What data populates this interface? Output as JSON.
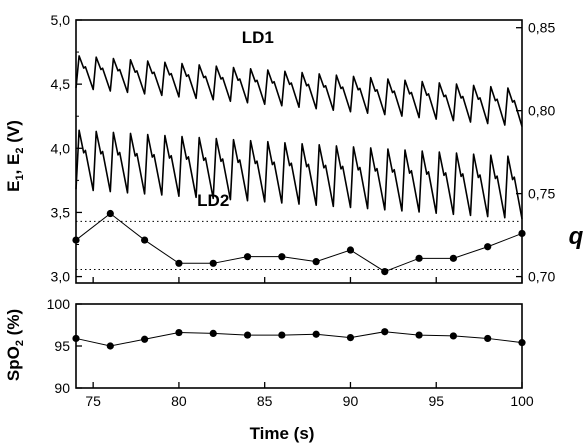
{
  "chart_data": [
    {
      "type": "line",
      "panel": "top",
      "ylabel_left": "E1, E2 (V)",
      "ylabel_right": "q",
      "x_range": [
        74,
        100
      ],
      "y_left_range": [
        2.95,
        5.0
      ],
      "y_left_ticks": [
        "3,0",
        "3,5",
        "4,0",
        "4,5",
        "5,0"
      ],
      "y_left_tick_values": [
        3.0,
        3.5,
        4.0,
        4.5,
        5.0
      ],
      "y_right_ticks": [
        "0,70",
        "0,75",
        "0,80",
        "0,85"
      ],
      "y_right_tick_values": [
        0.7,
        0.75,
        0.8,
        0.85
      ],
      "annotations": [
        {
          "text": "LD1",
          "x": 84.6,
          "y": 4.82
        },
        {
          "text": "LD2",
          "x": 82.0,
          "y": 3.55
        }
      ],
      "reference_lines": [
        3.43,
        3.055
      ],
      "series": [
        {
          "name": "LD1",
          "kind": "pulsatile",
          "axis": "left",
          "period_s": 1.0,
          "trough_start": 4.47,
          "trough_end": 4.17,
          "peak_start": 4.72,
          "peak_end": 4.46
        },
        {
          "name": "LD2",
          "kind": "pulsatile",
          "axis": "left",
          "period_s": 1.0,
          "trough_start": 3.68,
          "trough_end": 3.45,
          "peak_start": 4.14,
          "peak_end": 3.93
        },
        {
          "name": "q",
          "kind": "markers",
          "axis": "right",
          "x": [
            74,
            76,
            78,
            80,
            82,
            84,
            86,
            88,
            90,
            92,
            94,
            96,
            98,
            100
          ],
          "y": [
            0.722,
            0.738,
            0.722,
            0.708,
            0.708,
            0.712,
            0.712,
            0.709,
            0.716,
            0.703,
            0.711,
            0.711,
            0.718,
            0.726
          ]
        }
      ]
    },
    {
      "type": "line",
      "panel": "bottom",
      "xlabel": "Time (s)",
      "ylabel": "SpO2 (%)",
      "x_range": [
        74,
        100
      ],
      "x_ticks": [
        75,
        80,
        85,
        90,
        95,
        100
      ],
      "y_range": [
        90,
        100
      ],
      "y_ticks": [
        90,
        95,
        100
      ],
      "series": [
        {
          "name": "SpO2",
          "x": [
            74,
            76,
            78,
            80,
            82,
            84,
            86,
            88,
            90,
            92,
            94,
            96,
            98,
            100
          ],
          "y": [
            95.9,
            95.0,
            95.8,
            96.6,
            96.5,
            96.3,
            96.3,
            96.4,
            96.0,
            96.7,
            96.3,
            96.2,
            95.9,
            95.4
          ]
        }
      ]
    }
  ]
}
